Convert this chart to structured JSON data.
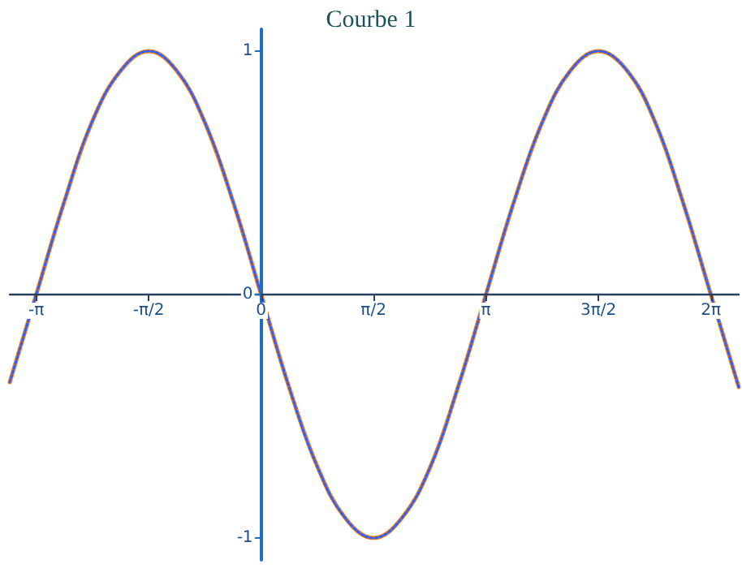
{
  "chart_data": {
    "type": "line",
    "title": "Courbe 1",
    "x": [
      -3.51,
      -3.14,
      -2.75,
      -2.36,
      -1.96,
      -1.57,
      -1.18,
      -0.79,
      -0.39,
      0,
      0.39,
      0.79,
      1.18,
      1.57,
      1.96,
      2.36,
      2.75,
      3.14,
      3.53,
      3.93,
      4.32,
      4.71,
      5.11,
      5.5,
      5.89,
      6.28,
      6.67
    ],
    "series": [
      {
        "color": "#ff7f0e",
        "line_style": "solid",
        "values": [
          -0.36,
          0,
          0.38,
          0.71,
          0.92,
          1,
          0.92,
          0.71,
          0.38,
          0,
          -0.38,
          -0.71,
          -0.92,
          -1,
          -0.92,
          -0.71,
          -0.38,
          0,
          0.38,
          0.71,
          0.92,
          1,
          0.92,
          0.71,
          0.38,
          0,
          -0.38
        ]
      },
      {
        "color": "#2962ff",
        "line_style": "dotted",
        "values": [
          -0.36,
          0,
          0.38,
          0.71,
          0.92,
          1,
          0.92,
          0.71,
          0.38,
          0,
          -0.38,
          -0.71,
          -0.92,
          -1,
          -0.92,
          -0.71,
          -0.38,
          0,
          0.38,
          0.71,
          0.92,
          1,
          0.92,
          0.71,
          0.38,
          0,
          -0.38
        ]
      }
    ],
    "xlim": [
      -3.51,
      6.67
    ],
    "xticks": [
      {
        "value": -3.14,
        "label": "-π"
      },
      {
        "value": -1.57,
        "label": "-π/2"
      },
      {
        "value": 0,
        "label": "0"
      },
      {
        "value": 1.57,
        "label": "π/2"
      },
      {
        "value": 3.14,
        "label": "π"
      },
      {
        "value": 4.71,
        "label": "3π/2"
      },
      {
        "value": 6.28,
        "label": "2π"
      }
    ],
    "ylim": [
      -1.09,
      1.09
    ],
    "yticks": [
      -1,
      0,
      1
    ],
    "marker": "none",
    "grid": false
  }
}
